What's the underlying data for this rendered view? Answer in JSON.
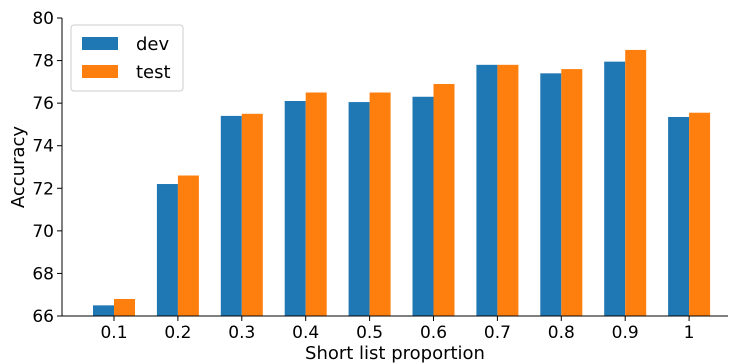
{
  "chart_data": {
    "type": "bar",
    "categories": [
      "0.1",
      "0.2",
      "0.3",
      "0.4",
      "0.5",
      "0.6",
      "0.7",
      "0.8",
      "0.9",
      "1"
    ],
    "series": [
      {
        "name": "dev",
        "color": "#1f77b4",
        "values": [
          66.5,
          72.2,
          75.4,
          76.1,
          76.05,
          76.3,
          77.8,
          77.4,
          77.95,
          75.35
        ]
      },
      {
        "name": "test",
        "color": "#ff7f0e",
        "values": [
          66.8,
          72.6,
          75.5,
          76.5,
          76.5,
          76.9,
          77.8,
          77.6,
          78.5,
          75.55
        ]
      }
    ],
    "xlabel": "Short list proportion",
    "ylabel": "Accuracy",
    "ylim": [
      66,
      80
    ],
    "yticks": [
      "66",
      "68",
      "70",
      "72",
      "74",
      "76",
      "78",
      "80"
    ],
    "legend_position": "top-left",
    "grid": false
  }
}
